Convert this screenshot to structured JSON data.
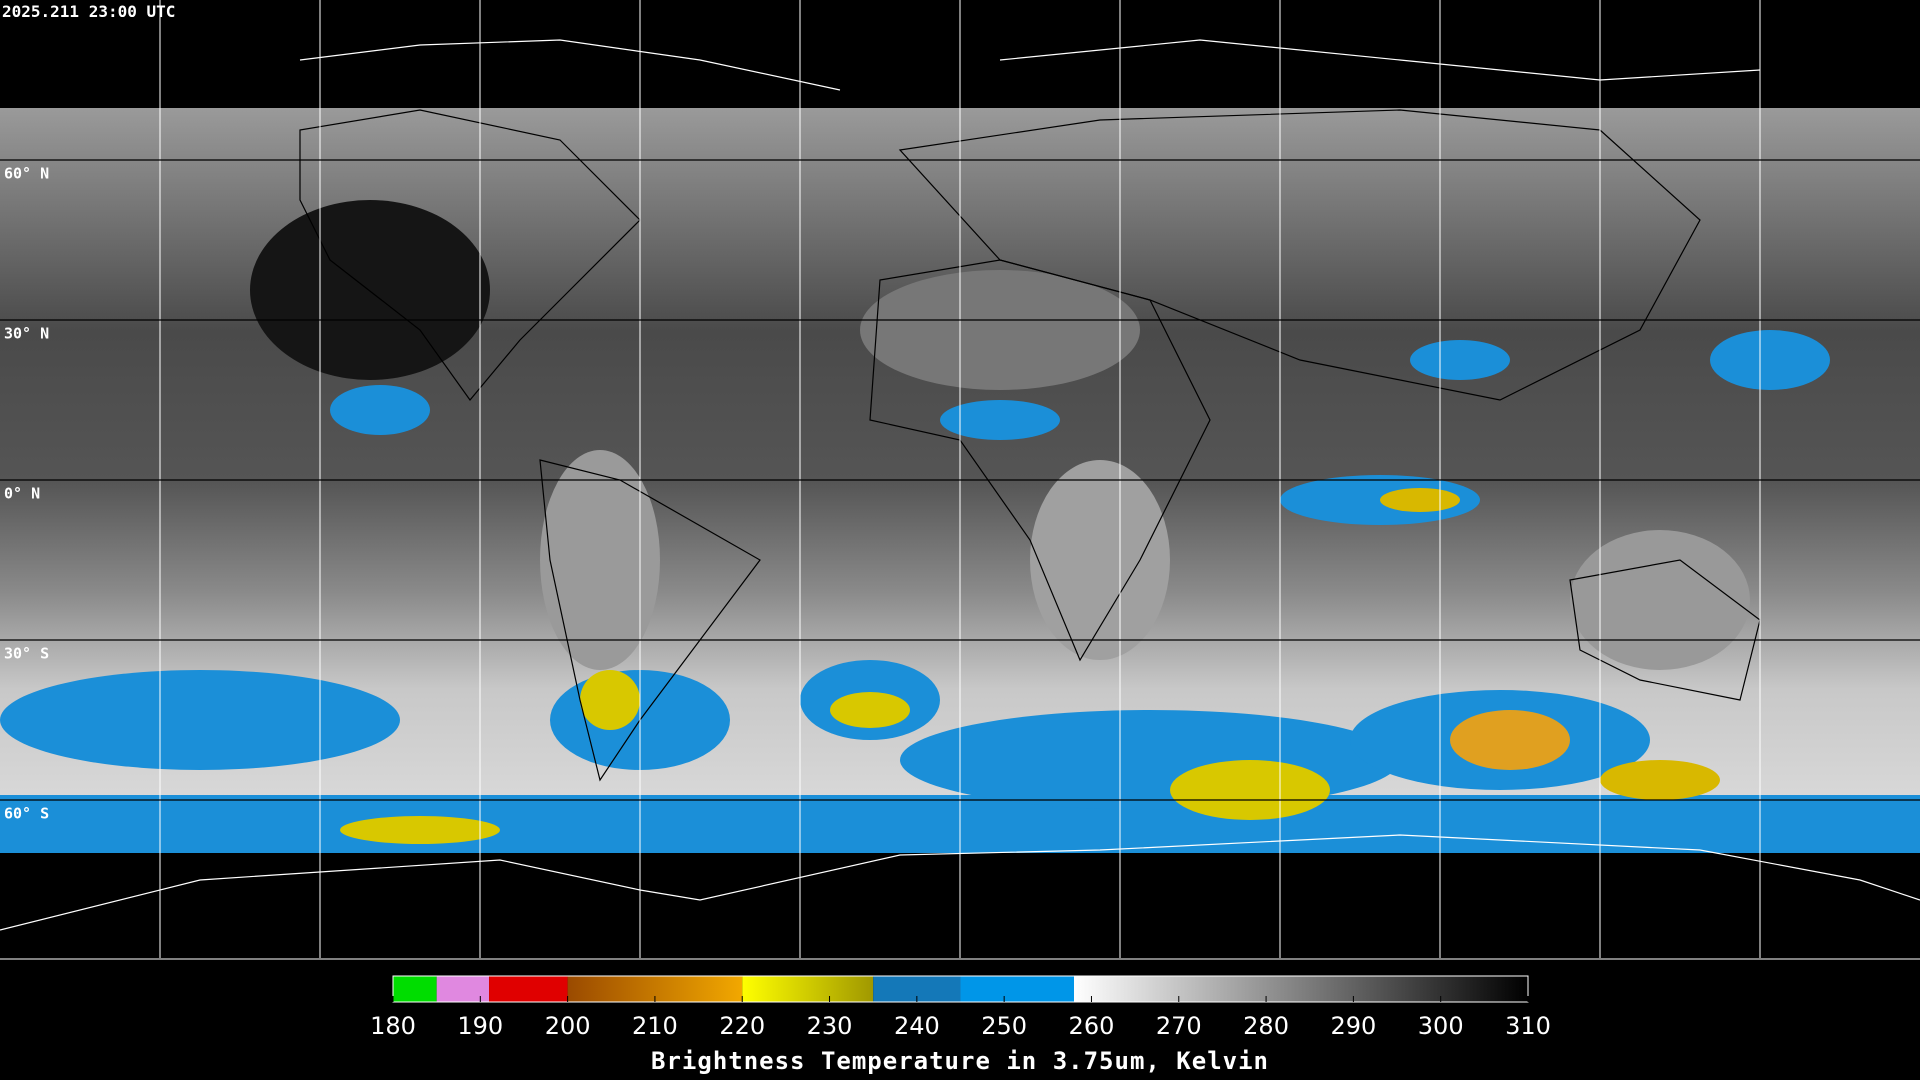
{
  "timestamp": "2025.211 23:00 UTC",
  "latitudes": [
    {
      "value": 60,
      "label": "60° N"
    },
    {
      "value": 30,
      "label": "30° N"
    },
    {
      "value": 0,
      "label": "0° N"
    },
    {
      "value": -30,
      "label": "30° S"
    },
    {
      "value": -60,
      "label": "60° S"
    }
  ],
  "colorbar": {
    "title": "Brightness Temperature in 3.75um, Kelvin",
    "range": [
      180,
      310
    ],
    "ticks": [
      180,
      190,
      200,
      210,
      220,
      230,
      240,
      250,
      260,
      270,
      280,
      290,
      300,
      310
    ],
    "segments": [
      {
        "start": 180,
        "end": 185,
        "from": "#00dd00",
        "to": "#00dd00"
      },
      {
        "start": 185,
        "end": 191,
        "from": "#e088e0",
        "to": "#e088e0"
      },
      {
        "start": 191,
        "end": 200,
        "from": "#e00000",
        "to": "#e00000"
      },
      {
        "start": 200,
        "end": 220,
        "from": "#9a4a00",
        "to": "#f2a800"
      },
      {
        "start": 220,
        "end": 235,
        "from": "#ffff00",
        "to": "#a09800"
      },
      {
        "start": 235,
        "end": 245,
        "from": "#1478b8",
        "to": "#1478b8"
      },
      {
        "start": 245,
        "end": 258,
        "from": "#0096e8",
        "to": "#0096e8"
      },
      {
        "start": 258,
        "end": 310,
        "from": "#ffffff",
        "to": "#000000"
      }
    ]
  }
}
